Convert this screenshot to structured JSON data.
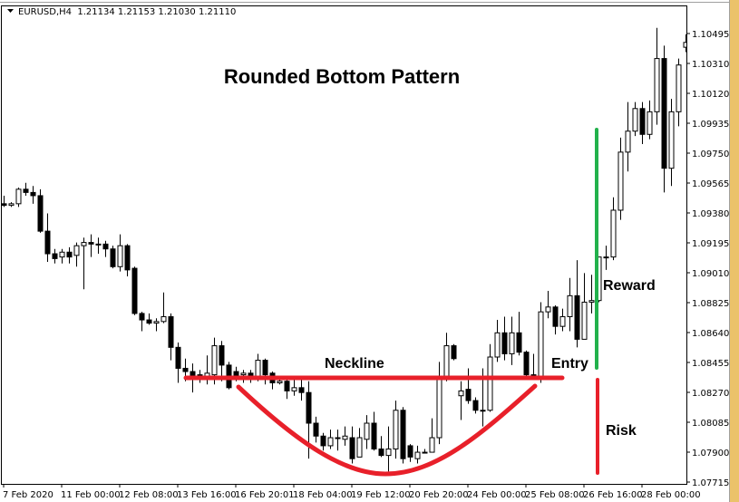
{
  "header": {
    "symbol_info": "EURUSD,H4  1.21134 1.21153 1.21030 1.21110",
    "menu_icon": "triangle-down-icon"
  },
  "colors": {
    "bull_fill": "#ffffff",
    "bear_fill": "#000000",
    "neckline": "#e8202a",
    "curve": "#e8202a",
    "reward": "#22b14c",
    "risk": "#e8202a",
    "side_strip": "#ebc26a"
  },
  "annotations": {
    "title": "Rounded Bottom Pattern",
    "neckline": "Neckline",
    "entry": "Entry",
    "reward": "Reward",
    "risk": "Risk"
  },
  "chart_data": {
    "type": "candlestick",
    "title": "Rounded Bottom Pattern",
    "timeframe": "H4",
    "ylim": [
      1.07715,
      1.10495
    ],
    "y_ticks": [
      "1.10495",
      "1.10310",
      "1.10120",
      "1.09935",
      "1.09750",
      "1.09565",
      "1.09380",
      "1.09195",
      "1.09010",
      "1.08825",
      "1.08640",
      "1.08455",
      "1.08270",
      "1.08085",
      "1.07900",
      "1.07715"
    ],
    "x_ticks": [
      "7 Feb 2020",
      "11 Feb 00:00",
      "12 Feb 08:00",
      "13 Feb 16:00",
      "16 Feb 20:01",
      "18 Feb 04:00",
      "19 Feb 12:00",
      "20 Feb 20:00",
      "24 Feb 00:00",
      "25 Feb 08:00",
      "26 Feb 16:00",
      "28 Feb 00:00"
    ],
    "ohlc": [
      [
        1.0944,
        1.0949,
        1.0942,
        1.0943
      ],
      [
        1.0943,
        1.0945,
        1.0942,
        1.0944
      ],
      [
        1.0944,
        1.0954,
        1.0942,
        1.0953
      ],
      [
        1.0953,
        1.0957,
        1.0949,
        1.0951
      ],
      [
        1.0951,
        1.0955,
        1.0944,
        1.0949
      ],
      [
        1.0949,
        1.0953,
        1.0926,
        1.0927
      ],
      [
        1.0927,
        1.0938,
        1.0908,
        1.0913
      ],
      [
        1.0913,
        1.0916,
        1.0907,
        1.091
      ],
      [
        1.0911,
        1.0916,
        1.0907,
        1.0914
      ],
      [
        1.0914,
        1.0917,
        1.0907,
        1.0911
      ],
      [
        1.0912,
        1.092,
        1.0905,
        1.0918
      ],
      [
        1.0918,
        1.0923,
        1.0891,
        1.092
      ],
      [
        1.092,
        1.0925,
        1.0911,
        1.0919
      ],
      [
        1.0919,
        1.0923,
        1.0913,
        1.0919
      ],
      [
        1.0919,
        1.0921,
        1.0911,
        1.0916
      ],
      [
        1.0916,
        1.0918,
        1.0904,
        1.0905
      ],
      [
        1.0905,
        1.0925,
        1.0902,
        1.0918
      ],
      [
        1.0918,
        1.0919,
        1.0899,
        1.0903
      ],
      [
        1.0904,
        1.0905,
        1.0875,
        1.0876
      ],
      [
        1.0876,
        1.0877,
        1.0865,
        1.0872
      ],
      [
        1.0872,
        1.0876,
        1.0869,
        1.087
      ],
      [
        1.087,
        1.0873,
        1.0865,
        1.0871
      ],
      [
        1.0871,
        1.0889,
        1.087,
        1.0874
      ],
      [
        1.0874,
        1.0876,
        1.0847,
        1.0855
      ],
      [
        1.0855,
        1.0858,
        1.0833,
        1.0842
      ],
      [
        1.0842,
        1.0848,
        1.0834,
        1.084
      ],
      [
        1.084,
        1.0845,
        1.0827,
        1.0837
      ],
      [
        1.0838,
        1.0841,
        1.0833,
        1.0838
      ],
      [
        1.0837,
        1.085,
        1.0832,
        1.0839
      ],
      [
        1.0838,
        1.0861,
        1.0832,
        1.0856
      ],
      [
        1.0856,
        1.0859,
        1.0834,
        1.0844
      ],
      [
        1.0844,
        1.0846,
        1.0829,
        1.083
      ],
      [
        1.084,
        1.0843,
        1.0834,
        1.0837
      ],
      [
        1.0838,
        1.0841,
        1.0833,
        1.0839
      ],
      [
        1.0839,
        1.0841,
        1.0833,
        1.0837
      ],
      [
        1.0837,
        1.0851,
        1.0834,
        1.0847
      ],
      [
        1.0847,
        1.0848,
        1.0832,
        1.0838
      ],
      [
        1.0839,
        1.084,
        1.0829,
        1.0833
      ],
      [
        1.0833,
        1.0837,
        1.0832,
        1.0834
      ],
      [
        1.0834,
        1.0836,
        1.0823,
        1.0828
      ],
      [
        1.0828,
        1.0836,
        1.0825,
        1.083
      ],
      [
        1.083,
        1.0835,
        1.0822,
        1.0827
      ],
      [
        1.0827,
        1.0834,
        1.0786,
        1.0808
      ],
      [
        1.0808,
        1.0812,
        1.0796,
        1.08
      ],
      [
        1.08,
        1.0802,
        1.0791,
        1.0794
      ],
      [
        1.0794,
        1.0804,
        1.0792,
        1.0799
      ],
      [
        1.0799,
        1.0804,
        1.0791,
        1.0799
      ],
      [
        1.0798,
        1.0806,
        1.0794,
        1.08
      ],
      [
        1.0799,
        1.0806,
        1.0783,
        1.0786
      ],
      [
        1.0787,
        1.0805,
        1.0787,
        1.0799
      ],
      [
        1.0798,
        1.0813,
        1.0792,
        1.0808
      ],
      [
        1.0808,
        1.0815,
        1.0791,
        1.0792
      ],
      [
        1.0792,
        1.08,
        1.0787,
        1.0788
      ],
      [
        1.0788,
        1.0806,
        1.0778,
        1.0792
      ],
      [
        1.0792,
        1.0822,
        1.0786,
        1.0816
      ],
      [
        1.0816,
        1.0818,
        1.0783,
        1.0786
      ],
      [
        1.0794,
        1.0795,
        1.0784,
        1.0787
      ],
      [
        1.0786,
        1.0794,
        1.0783,
        1.079
      ],
      [
        1.079,
        1.0792,
        1.079,
        1.079
      ],
      [
        1.079,
        1.0811,
        1.079,
        1.0799
      ],
      [
        1.0799,
        1.0846,
        1.0795,
        1.0836
      ],
      [
        1.0836,
        1.0864,
        1.0834,
        1.0856
      ],
      [
        1.0856,
        1.0857,
        1.0847,
        1.0848
      ],
      [
        1.0825,
        1.0834,
        1.081,
        1.0828
      ],
      [
        1.0829,
        1.0842,
        1.082,
        1.0822
      ],
      [
        1.0822,
        1.0824,
        1.0814,
        1.0816
      ],
      [
        1.0816,
        1.0842,
        1.0806,
        1.0816
      ],
      [
        1.0816,
        1.0857,
        1.0815,
        1.0849
      ],
      [
        1.0849,
        1.0872,
        1.0846,
        1.0864
      ],
      [
        1.0864,
        1.0874,
        1.0847,
        1.0851
      ],
      [
        1.0851,
        1.0874,
        1.0844,
        1.0864
      ],
      [
        1.0864,
        1.0877,
        1.085,
        1.0852
      ],
      [
        1.0852,
        1.0853,
        1.0837,
        1.0838
      ],
      [
        1.0838,
        1.0851,
        1.0836,
        1.0837
      ],
      [
        1.0836,
        1.0883,
        1.0833,
        1.0877
      ],
      [
        1.0877,
        1.089,
        1.0873,
        1.088
      ],
      [
        1.088,
        1.0881,
        1.0863,
        1.0868
      ],
      [
        1.0868,
        1.0879,
        1.0865,
        1.0874
      ],
      [
        1.0874,
        1.0898,
        1.0865,
        1.0887
      ],
      [
        1.0887,
        1.0909,
        1.0855,
        1.086
      ],
      [
        1.086,
        1.0901,
        1.086,
        1.0883
      ],
      [
        1.0883,
        1.09,
        1.0876,
        1.0884
      ],
      [
        1.0884,
        1.0911,
        1.0883,
        1.0911
      ],
      [
        1.0911,
        1.0918,
        1.0903,
        1.0911
      ],
      [
        1.0911,
        1.0948,
        1.0909,
        1.094
      ],
      [
        1.094,
        1.0985,
        1.0934,
        1.0976
      ],
      [
        1.0976,
        1.1007,
        1.0964,
        1.0989
      ],
      [
        1.0989,
        1.1007,
        1.0986,
        1.1003
      ],
      [
        1.1003,
        1.1007,
        1.0981,
        1.0987
      ],
      [
        1.0987,
        1.1008,
        1.0984,
        1.1001
      ],
      [
        1.1001,
        1.1053,
        1.0993,
        1.1034
      ],
      [
        1.1034,
        1.1042,
        1.0951,
        1.0966
      ],
      [
        1.0966,
        1.1009,
        1.0955,
        1.1001
      ],
      [
        1.1001,
        1.1034,
        1.0992,
        1.103
      ],
      [
        1.1041,
        1.1049,
        1.1038,
        1.1044
      ]
    ]
  }
}
